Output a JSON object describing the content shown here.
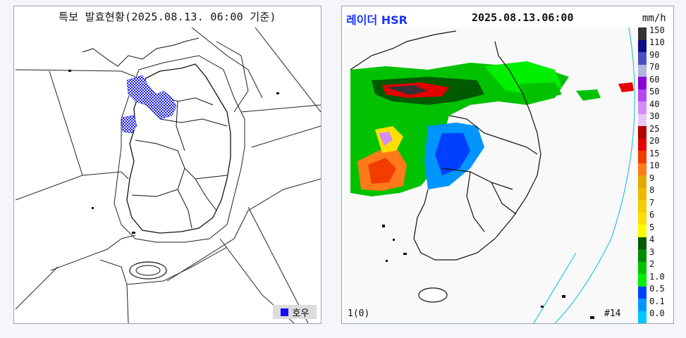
{
  "left_panel": {
    "title": "특보 발효현황(2025.08.13. 06:00 기준)",
    "legend": {
      "label": "호우",
      "color": "#1010ee"
    }
  },
  "right_panel": {
    "radar_label": "레이더 HSR",
    "radar_label_color": "#1a33ff",
    "timestamp": "2025.08.13.06:00",
    "unit": "mm/h",
    "scale": [
      {
        "label": "150",
        "color": "#333333"
      },
      {
        "label": "110",
        "color": "#0b0b8a"
      },
      {
        "label": "90",
        "color": "#4c4ec0"
      },
      {
        "label": "70",
        "color": "#b3b3e0"
      },
      {
        "label": "60",
        "color": "#8a00d8"
      },
      {
        "label": "50",
        "color": "#b547f0"
      },
      {
        "label": "40",
        "color": "#d48cf5"
      },
      {
        "label": "30",
        "color": "#e8c6fb"
      },
      {
        "label": "25",
        "color": "#b30000"
      },
      {
        "label": "20",
        "color": "#e30000"
      },
      {
        "label": "15",
        "color": "#f23c00"
      },
      {
        "label": "10",
        "color": "#ff7a1a"
      },
      {
        "label": "9",
        "color": "#e6a800"
      },
      {
        "label": "8",
        "color": "#eeb800"
      },
      {
        "label": "7",
        "color": "#f5cc00"
      },
      {
        "label": "6",
        "color": "#ffdd00"
      },
      {
        "label": "5",
        "color": "#ffff00"
      },
      {
        "label": "4",
        "color": "#005a00"
      },
      {
        "label": "3",
        "color": "#008a00"
      },
      {
        "label": "2",
        "color": "#00c200"
      },
      {
        "label": "1.0",
        "color": "#00ee00"
      },
      {
        "label": "0.5",
        "color": "#0040ff"
      },
      {
        "label": "0.1",
        "color": "#0095ff"
      },
      {
        "label": "0.0",
        "color": "#00c8ff"
      }
    ],
    "corner_left": "1(0)",
    "corner_right": "#14"
  }
}
